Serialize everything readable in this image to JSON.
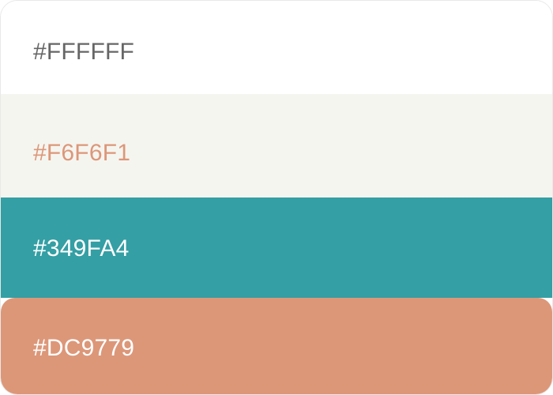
{
  "palette": {
    "swatches": [
      {
        "label": "#FFFFFF",
        "color": "#ffffff",
        "text_color": "#666666"
      },
      {
        "label": "#F6F6F1",
        "color": "#f5f5f0",
        "text_color": "#dc9779"
      },
      {
        "label": "#349FA4",
        "color": "#349fa4",
        "text_color": "#ffffff"
      },
      {
        "label": "#DC9779",
        "color": "#dc9779",
        "text_color": "#ffffff"
      }
    ]
  }
}
